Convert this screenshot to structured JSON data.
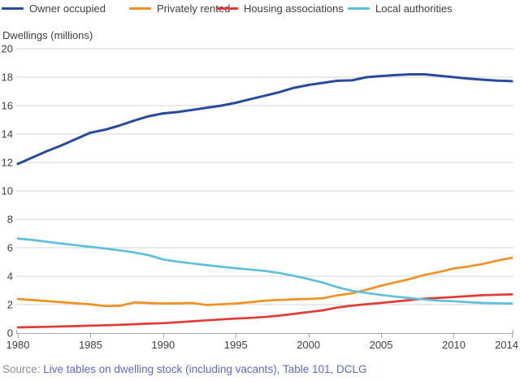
{
  "y_axis_title": "Dwellings (millions)",
  "source": {
    "prefix": "Source: ",
    "link_text": "Live tables on dwelling stock (including vacants), Table 101, DCLG"
  },
  "colors": {
    "grid": "#d6d6d6",
    "axis": "#a9a9a9",
    "text": "#3f3f41",
    "source_label": "#8e8e8e",
    "link": "#5a6bd0",
    "background": "#ffffff"
  },
  "chart_data": {
    "type": "line",
    "title": "",
    "xlabel": "",
    "ylabel": "Dwellings (millions)",
    "xlim": [
      1980,
      2014
    ],
    "ylim": [
      0,
      20
    ],
    "grid": true,
    "legend_position": "top",
    "xticks": [
      1980,
      1985,
      1990,
      1995,
      2000,
      2005,
      2010,
      2014
    ],
    "yticks": [
      0,
      2,
      4,
      6,
      8,
      10,
      12,
      14,
      16,
      18,
      20
    ],
    "x": [
      1980,
      1981,
      1982,
      1983,
      1984,
      1985,
      1986,
      1987,
      1988,
      1989,
      1990,
      1991,
      1992,
      1993,
      1994,
      1995,
      1996,
      1997,
      1998,
      1999,
      2000,
      2001,
      2002,
      2003,
      2004,
      2005,
      2006,
      2007,
      2008,
      2009,
      2010,
      2011,
      2012,
      2013,
      2014
    ],
    "series": [
      {
        "name": "Owner occupied",
        "color": "#2a4a9e",
        "values": [
          11.9,
          12.35,
          12.8,
          13.2,
          13.65,
          14.1,
          14.3,
          14.6,
          14.95,
          15.25,
          15.45,
          15.55,
          15.7,
          15.85,
          16.0,
          16.2,
          16.45,
          16.7,
          16.95,
          17.25,
          17.45,
          17.6,
          17.75,
          17.78,
          18.0,
          18.08,
          18.15,
          18.2,
          18.2,
          18.1,
          18.0,
          17.9,
          17.82,
          17.76,
          17.72
        ]
      },
      {
        "name": "Privately rented",
        "color": "#f29222",
        "values": [
          2.4,
          2.32,
          2.25,
          2.17,
          2.1,
          2.02,
          1.9,
          1.92,
          2.15,
          2.12,
          2.08,
          2.09,
          2.12,
          1.98,
          2.02,
          2.08,
          2.17,
          2.28,
          2.33,
          2.37,
          2.4,
          2.45,
          2.65,
          2.8,
          3.05,
          3.33,
          3.57,
          3.81,
          4.1,
          4.3,
          4.55,
          4.68,
          4.86,
          5.1,
          5.3
        ]
      },
      {
        "name": "Housing associations",
        "color": "#e03c39",
        "values": [
          0.4,
          0.42,
          0.44,
          0.46,
          0.49,
          0.52,
          0.55,
          0.58,
          0.62,
          0.66,
          0.7,
          0.76,
          0.83,
          0.9,
          0.96,
          1.02,
          1.07,
          1.13,
          1.23,
          1.35,
          1.48,
          1.6,
          1.8,
          1.93,
          2.03,
          2.12,
          2.22,
          2.32,
          2.42,
          2.48,
          2.54,
          2.6,
          2.66,
          2.7,
          2.72
        ]
      },
      {
        "name": "Local authorities",
        "color": "#5fc0da",
        "values": [
          6.65,
          6.55,
          6.42,
          6.3,
          6.18,
          6.06,
          5.95,
          5.82,
          5.67,
          5.48,
          5.18,
          5.02,
          4.9,
          4.78,
          4.66,
          4.56,
          4.47,
          4.37,
          4.22,
          4.02,
          3.8,
          3.55,
          3.22,
          2.98,
          2.82,
          2.68,
          2.56,
          2.46,
          2.36,
          2.28,
          2.24,
          2.17,
          2.12,
          2.1,
          2.08
        ]
      }
    ]
  }
}
